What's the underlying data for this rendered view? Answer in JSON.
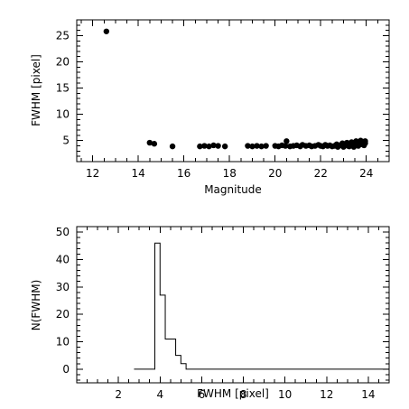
{
  "chart_data": [
    {
      "type": "scatter",
      "xlabel": "Magnitude",
      "ylabel": "FWHM [pixel]",
      "xlim": [
        11.3,
        25
      ],
      "ylim": [
        1,
        28
      ],
      "xticks": [
        12,
        14,
        16,
        18,
        20,
        22,
        24
      ],
      "yticks": [
        5,
        10,
        15,
        20,
        25
      ],
      "minor_xticks": 4,
      "minor_yticks": 5,
      "series": [
        {
          "points": [
            [
              12.6,
              25.8
            ],
            [
              14.5,
              4.6
            ],
            [
              14.7,
              4.4
            ],
            [
              15.5,
              3.9
            ],
            [
              16.7,
              3.9
            ],
            [
              16.9,
              4.0
            ],
            [
              17.1,
              3.9
            ],
            [
              17.3,
              4.1
            ],
            [
              17.5,
              4.0
            ],
            [
              17.8,
              3.9
            ],
            [
              18.8,
              4.0
            ],
            [
              19.0,
              3.9
            ],
            [
              19.2,
              4.0
            ],
            [
              19.4,
              3.9
            ],
            [
              19.6,
              4.0
            ],
            [
              20.0,
              4.0
            ],
            [
              20.15,
              3.9
            ],
            [
              20.3,
              4.1
            ],
            [
              20.45,
              4.0
            ],
            [
              20.5,
              4.9
            ],
            [
              20.65,
              3.9
            ],
            [
              20.8,
              4.0
            ],
            [
              20.95,
              4.1
            ],
            [
              21.1,
              3.9
            ],
            [
              21.2,
              4.2
            ],
            [
              21.35,
              4.0
            ],
            [
              21.5,
              4.1
            ],
            [
              21.6,
              3.9
            ],
            [
              21.75,
              4.0
            ],
            [
              21.9,
              4.2
            ],
            [
              22.0,
              4.0
            ],
            [
              22.1,
              3.9
            ],
            [
              22.2,
              4.2
            ],
            [
              22.3,
              4.0
            ],
            [
              22.4,
              4.1
            ],
            [
              22.5,
              3.9
            ],
            [
              22.6,
              4.0
            ],
            [
              22.7,
              4.3
            ],
            [
              22.75,
              3.8
            ],
            [
              22.85,
              4.1
            ],
            [
              22.95,
              4.5
            ],
            [
              23.0,
              3.8
            ],
            [
              23.05,
              4.2
            ],
            [
              23.15,
              4.6
            ],
            [
              23.2,
              4.0
            ],
            [
              23.25,
              3.9
            ],
            [
              23.3,
              4.4
            ],
            [
              23.35,
              4.7
            ],
            [
              23.4,
              4.1
            ],
            [
              23.45,
              3.8
            ],
            [
              23.5,
              4.5
            ],
            [
              23.55,
              4.9
            ],
            [
              23.6,
              4.2
            ],
            [
              23.65,
              4.0
            ],
            [
              23.7,
              4.6
            ],
            [
              23.75,
              5.0
            ],
            [
              23.8,
              4.3
            ],
            [
              23.85,
              4.8
            ],
            [
              23.9,
              4.1
            ],
            [
              23.95,
              4.9
            ],
            [
              23.95,
              4.5
            ]
          ]
        }
      ]
    },
    {
      "type": "histogram",
      "xlabel": "FWHM [pixel]",
      "ylabel": "N(FWHM)",
      "xlim": [
        0,
        15
      ],
      "ylim": [
        -5,
        52
      ],
      "xticks": [
        2,
        4,
        6,
        8,
        10,
        12,
        14
      ],
      "yticks": [
        0,
        10,
        20,
        30,
        40,
        50
      ],
      "minor_xticks": 4,
      "minor_yticks": 5,
      "bin_width": 0.25,
      "bins": [
        {
          "x": 2.75,
          "count": 0
        },
        {
          "x": 3.0,
          "count": 0
        },
        {
          "x": 3.25,
          "count": 0
        },
        {
          "x": 3.5,
          "count": 0
        },
        {
          "x": 3.75,
          "count": 46
        },
        {
          "x": 4.0,
          "count": 27
        },
        {
          "x": 4.25,
          "count": 11
        },
        {
          "x": 4.5,
          "count": 11
        },
        {
          "x": 4.75,
          "count": 5
        },
        {
          "x": 5.0,
          "count": 2
        },
        {
          "x": 5.25,
          "count": 0
        },
        {
          "x": 15.0,
          "count": 0
        }
      ]
    }
  ]
}
